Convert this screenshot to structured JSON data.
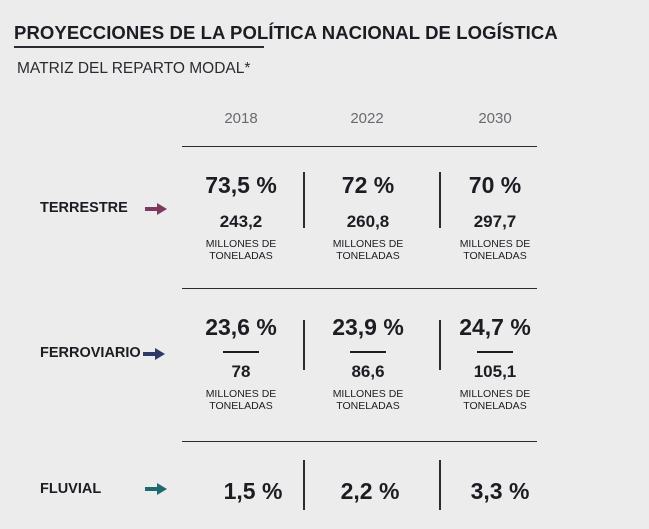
{
  "title": "PROYECCIONES DE LA POLÍTICA NACIONAL DE LOGÍSTICA",
  "subtitle": "MATRIZ DEL REPARTO MODAL*",
  "years": [
    "2018",
    "2022",
    "2030"
  ],
  "unit_label": "MILLONES DE TONELADAS",
  "colors": {
    "terrestre_arrow": "#7d3a5e",
    "ferroviario_arrow": "#2e3a66",
    "fluvial_arrow": "#1e6a6e"
  },
  "rows": [
    {
      "label": "TERRESTRE",
      "arrow_icon": "arrow-right-icon",
      "cells": [
        {
          "pct": "73,5 %",
          "value": "243,2",
          "unit_line1": "MILLONES DE",
          "unit_line2": "TONELADAS"
        },
        {
          "pct": "72 %",
          "value": "260,8",
          "unit_line1": "MILLONES DE",
          "unit_line2": "TONELADAS"
        },
        {
          "pct": "70 %",
          "value": "297,7",
          "unit_line1": "MILLONES DE",
          "unit_line2": "TONELADAS"
        }
      ]
    },
    {
      "label": "FERROVIARIO",
      "arrow_icon": "arrow-right-icon",
      "cells": [
        {
          "pct": "23,6 %",
          "value": "78",
          "unit_line1": "MILLONES DE",
          "unit_line2": "TONELADAS"
        },
        {
          "pct": "23,9 %",
          "value": "86,6",
          "unit_line1": "MILLONES DE",
          "unit_line2": "TONELADAS"
        },
        {
          "pct": "24,7 %",
          "value": "105,1",
          "unit_line1": "MILLONES DE",
          "unit_line2": "TONELADAS"
        }
      ]
    },
    {
      "label": "FLUVIAL",
      "arrow_icon": "arrow-right-icon",
      "cells": [
        {
          "pct": "1,5 %"
        },
        {
          "pct": "2,2 %"
        },
        {
          "pct": "3,3 %"
        }
      ]
    }
  ]
}
